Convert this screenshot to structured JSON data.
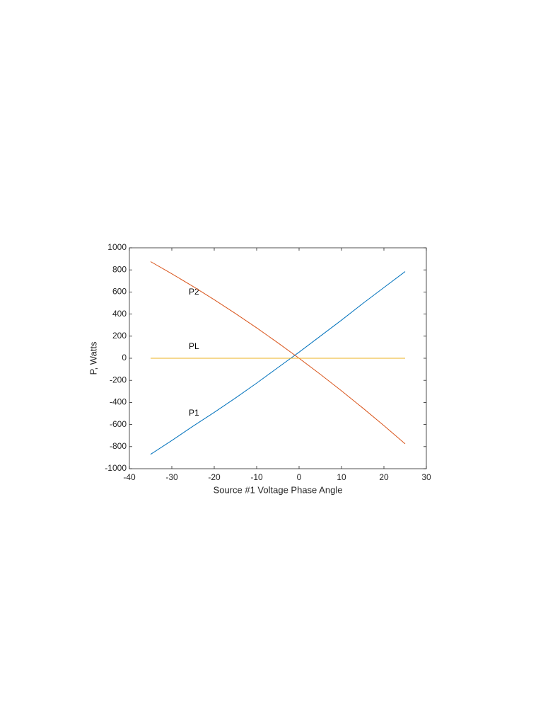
{
  "chart_data": {
    "type": "line",
    "x_label": "Source #1 Voltage Phase Angle",
    "y_label": "P, Watts",
    "x": [
      -35,
      -30,
      -25,
      -20,
      -15,
      -10,
      -5,
      0,
      5,
      10,
      15,
      20,
      25
    ],
    "series": [
      {
        "name": "P1",
        "color": "#0072bd",
        "values": [
          -870,
          -745,
          -615,
          -490,
          -360,
          -225,
          -85,
          55,
          200,
          345,
          495,
          640,
          785
        ]
      },
      {
        "name": "P2",
        "color": "#d95319",
        "values": [
          875,
          765,
          650,
          530,
          405,
          275,
          140,
          0,
          -145,
          -295,
          -450,
          -610,
          -775
        ]
      },
      {
        "name": "PL",
        "color": "#edb120",
        "values": [
          0,
          0,
          0,
          0,
          0,
          0,
          0,
          0,
          0,
          0,
          0,
          0,
          0
        ]
      }
    ],
    "xlim": [
      -40,
      30
    ],
    "xticks": [
      -40,
      -30,
      -20,
      -10,
      0,
      10,
      20,
      30
    ],
    "ylim": [
      -1000,
      1000
    ],
    "yticks": [
      -1000,
      -800,
      -600,
      -400,
      -200,
      0,
      200,
      400,
      600,
      800,
      1000
    ],
    "grid": false
  }
}
